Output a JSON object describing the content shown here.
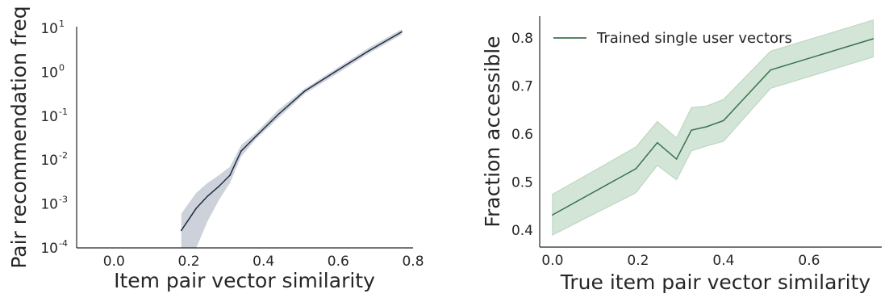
{
  "chart_data": [
    {
      "type": "line",
      "xlabel": "Item pair vector similarity",
      "ylabel": "Pair recommendation freq",
      "yscale": "log",
      "xlim": [
        -0.1,
        0.8
      ],
      "ylim": [
        0.0001,
        10
      ],
      "xticks": [
        "0.0",
        "0.2",
        "0.4",
        "0.6",
        "0.8"
      ],
      "xtick_values": [
        0.0,
        0.2,
        0.4,
        0.6,
        0.8
      ],
      "yticks": [
        "10⁻⁴",
        "10⁻³",
        "10⁻²",
        "10⁻¹",
        "10⁰",
        "10¹"
      ],
      "ytick_exponents": [
        -4,
        -3,
        -2,
        -1,
        0,
        1
      ],
      "grid": false,
      "colors": {
        "line": "#1f2a44",
        "band": "#c4cad4"
      },
      "series": [
        {
          "x": [
            0.18,
            0.22,
            0.25,
            0.28,
            0.31,
            0.34,
            0.38,
            0.44,
            0.51,
            0.59,
            0.68,
            0.77
          ],
          "y": [
            0.00025,
            0.0008,
            0.0015,
            0.0025,
            0.0045,
            0.016,
            0.035,
            0.11,
            0.37,
            1.0,
            3.0,
            8.3
          ],
          "lower": [
            0.0001,
            0.0001,
            0.0004,
            0.0012,
            0.003,
            0.012,
            0.03,
            0.09,
            0.32,
            0.85,
            2.6,
            7.2
          ],
          "upper": [
            0.0006,
            0.0018,
            0.003,
            0.0045,
            0.007,
            0.022,
            0.042,
            0.14,
            0.42,
            1.15,
            3.5,
            9.6
          ]
        }
      ]
    },
    {
      "type": "line",
      "xlabel": "True item pair vector similarity",
      "ylabel": "Fraction accessible",
      "xlim": [
        -0.03,
        0.77
      ],
      "ylim": [
        0.365,
        0.845
      ],
      "xticks": [
        "0.0",
        "0.2",
        "0.4",
        "0.6"
      ],
      "xtick_values": [
        0.0,
        0.2,
        0.4,
        0.6
      ],
      "yticks": [
        "0.4",
        "0.5",
        "0.6",
        "0.7",
        "0.8"
      ],
      "ytick_values": [
        0.4,
        0.5,
        0.6,
        0.7,
        0.8
      ],
      "grid": false,
      "legend_position": "upper-left",
      "colors": {
        "line": "#3b7250",
        "band": "#d3e5d6"
      },
      "series": [
        {
          "name": "Trained single user vectors",
          "x": [
            0.0,
            0.195,
            0.245,
            0.29,
            0.325,
            0.36,
            0.4,
            0.51,
            0.75
          ],
          "y": [
            0.432,
            0.528,
            0.582,
            0.548,
            0.608,
            0.615,
            0.628,
            0.733,
            0.798
          ],
          "lower": [
            0.39,
            0.478,
            0.535,
            0.505,
            0.565,
            0.575,
            0.585,
            0.695,
            0.76
          ],
          "upper": [
            0.475,
            0.573,
            0.626,
            0.592,
            0.655,
            0.658,
            0.672,
            0.772,
            0.837
          ]
        }
      ]
    }
  ]
}
